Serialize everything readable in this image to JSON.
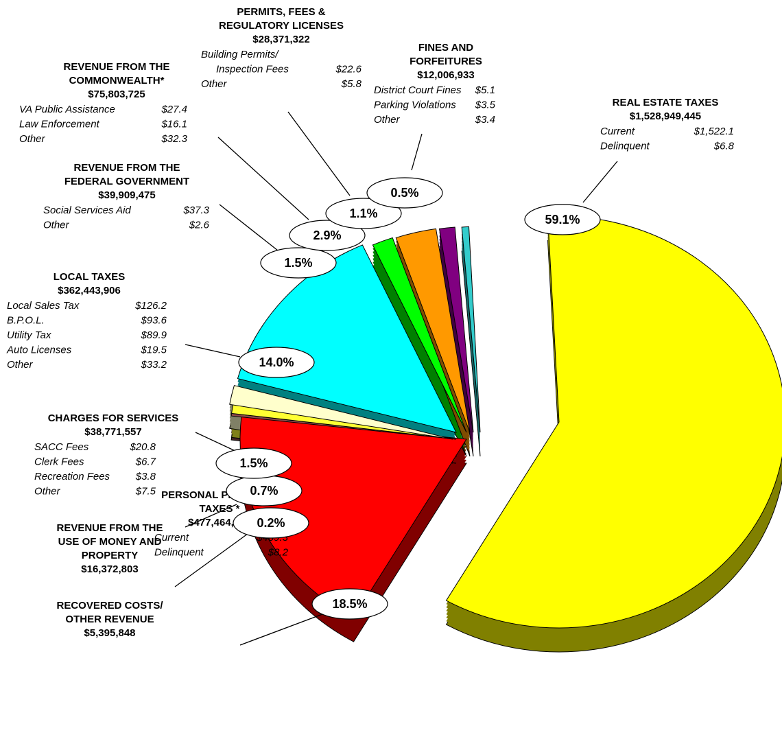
{
  "chart_data": {
    "type": "pie",
    "categories": [
      [
        "REAL ESTATE TAXES"
      ],
      [
        "PERSONAL PROPERTY",
        "TAXES *"
      ],
      [
        "RECOVERED COSTS/",
        "OTHER REVENUE"
      ],
      [
        "REVENUE FROM THE",
        "USE OF MONEY AND",
        "PROPERTY"
      ],
      [
        "CHARGES FOR SERVICES"
      ],
      [
        "LOCAL TAXES"
      ],
      [
        "REVENUE FROM THE",
        "FEDERAL GOVERNMENT"
      ],
      [
        "REVENUE FROM THE",
        "COMMONWEALTH*"
      ],
      [
        "PERMITS, FEES &",
        "REGULATORY LICENSES"
      ],
      [
        "FINES AND",
        "FORFEITURES"
      ]
    ],
    "values": [
      59.1,
      18.5,
      0.2,
      0.7,
      1.5,
      14.0,
      1.5,
      2.9,
      1.1,
      0.5
    ],
    "value_labels": [
      "59.1%",
      "18.5%",
      "0.2%",
      "0.7%",
      "1.5%",
      "14.0%",
      "1.5%",
      "2.9%",
      "1.1%",
      "0.5%"
    ],
    "amounts": [
      "$1,528,949,445",
      "$477,464,895",
      "$5,395,848",
      "$16,372,803",
      "$38,771,557",
      "$362,443,906",
      "$39,909,475",
      "$75,803,725",
      "$28,371,322",
      "$12,006,933"
    ],
    "details": [
      [
        {
          "label": "Current",
          "value": "$1,522.1"
        },
        {
          "label": "Delinquent",
          "value": "$6.8"
        }
      ],
      [
        {
          "label": "Current",
          "value": "$469.3"
        },
        {
          "label": "Delinquent",
          "value": "$8.2"
        }
      ],
      [],
      [],
      [
        {
          "label": "SACC Fees",
          "value": "$20.8"
        },
        {
          "label": "Clerk Fees",
          "value": "$6.7"
        },
        {
          "label": "Recreation Fees",
          "value": "$3.8"
        },
        {
          "label": "Other",
          "value": "$7.5"
        }
      ],
      [
        {
          "label": "Local Sales Tax",
          "value": "$126.2"
        },
        {
          "label": "B.P.O.L.",
          "value": "$93.6"
        },
        {
          "label": "Utility Tax",
          "value": "$89.9"
        },
        {
          "label": "Auto Licenses",
          "value": "$19.5"
        },
        {
          "label": "Other",
          "value": "$33.2"
        }
      ],
      [
        {
          "label": "Social Services Aid",
          "value": "$37.3"
        },
        {
          "label": "Other",
          "value": "$2.6"
        }
      ],
      [
        {
          "label": "VA Public Assistance",
          "value": "$27.4"
        },
        {
          "label": "Law Enforcement",
          "value": "$16.1"
        },
        {
          "label": "Other",
          "value": "$32.3"
        }
      ],
      [
        {
          "label": "Building Permits/"
        },
        {
          "label": "Inspection Fees",
          "value": "$22.6"
        },
        {
          "label": "Other",
          "value": "$5.8"
        }
      ],
      [
        {
          "label": "District Court Fines",
          "value": "$5.1"
        },
        {
          "label": "Parking Violations",
          "value": "$3.5"
        },
        {
          "label": "Other",
          "value": "$3.4"
        }
      ]
    ],
    "colors": [
      "#ffff00",
      "#ff0000",
      "#8c4a4a",
      "#ffff33",
      "#ffffcc",
      "#00ffff",
      "#00ff00",
      "#ff9900",
      "#800080",
      "#33cccc"
    ]
  }
}
